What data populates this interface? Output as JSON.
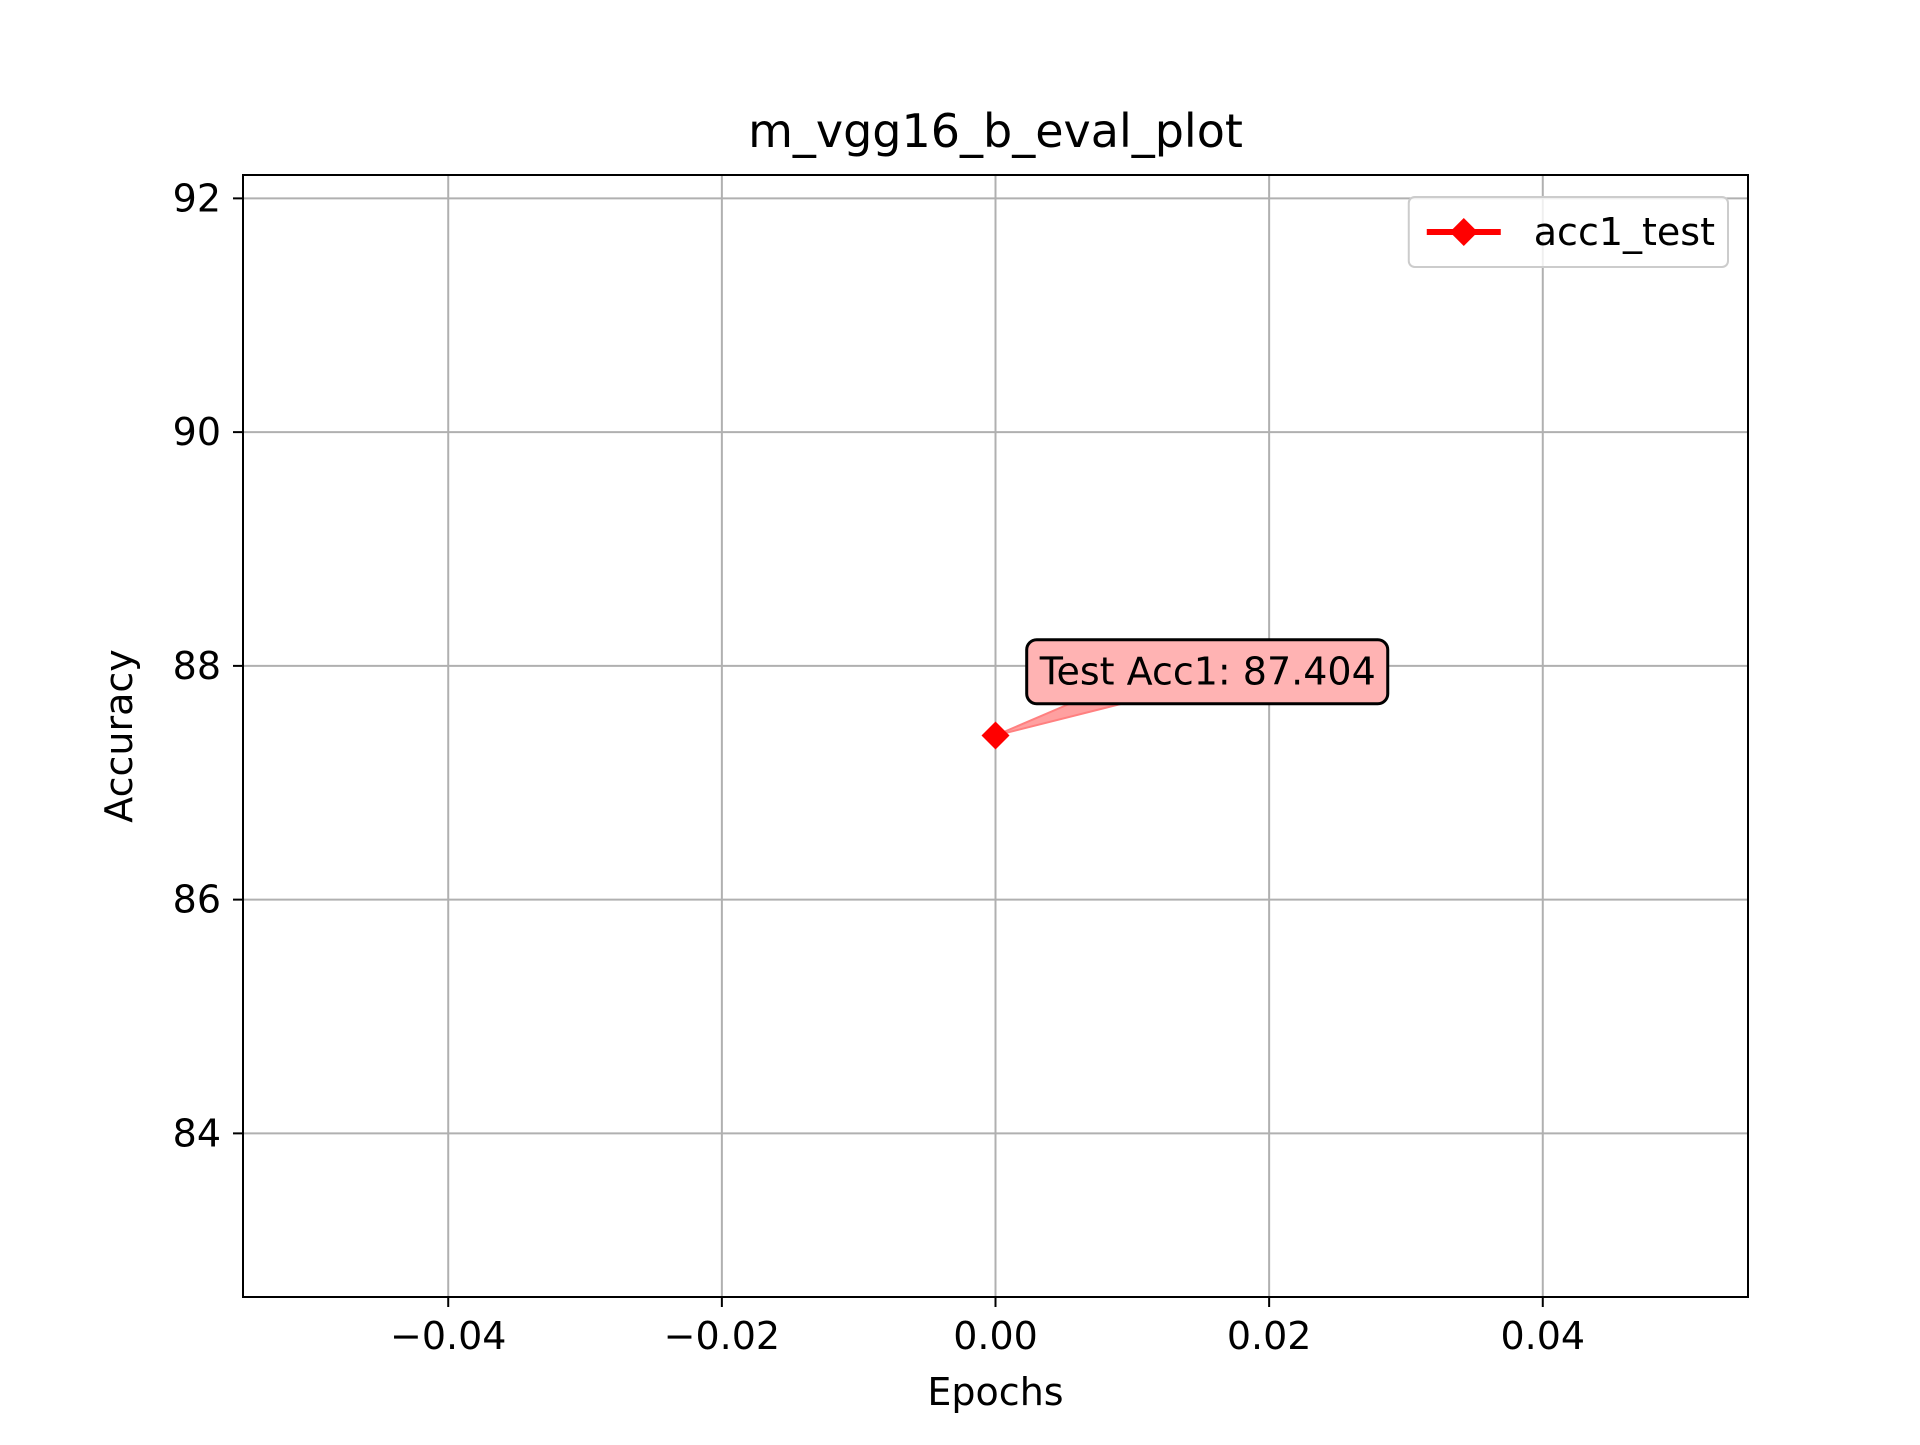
{
  "chart_data": {
    "type": "line",
    "title": "m_vgg16_b_eval_plot",
    "xlabel": "Epochs",
    "ylabel": "Accuracy",
    "xlim": [
      -0.055,
      0.055
    ],
    "ylim": [
      82.6,
      92.2
    ],
    "x_ticks": [
      -0.04,
      -0.02,
      0.0,
      0.02,
      0.04
    ],
    "x_tick_labels": [
      "−0.04",
      "−0.02",
      "0.00",
      "0.02",
      "0.04"
    ],
    "y_ticks": [
      84,
      86,
      88,
      90,
      92
    ],
    "y_tick_labels": [
      "84",
      "86",
      "88",
      "90",
      "92"
    ],
    "grid": true,
    "legend_position": "top-right",
    "series": [
      {
        "name": "acc1_test",
        "color": "#ff0000",
        "marker": "diamond",
        "x": [
          0
        ],
        "y": [
          87.404
        ]
      }
    ],
    "annotations": [
      {
        "text": "Test Acc1: 87.404",
        "x": 0,
        "y": 87.404,
        "text_x": 0.0025,
        "text_y": 87.95,
        "box_color": "#ffb3b3",
        "arrow_color": "#ff8080"
      }
    ]
  }
}
